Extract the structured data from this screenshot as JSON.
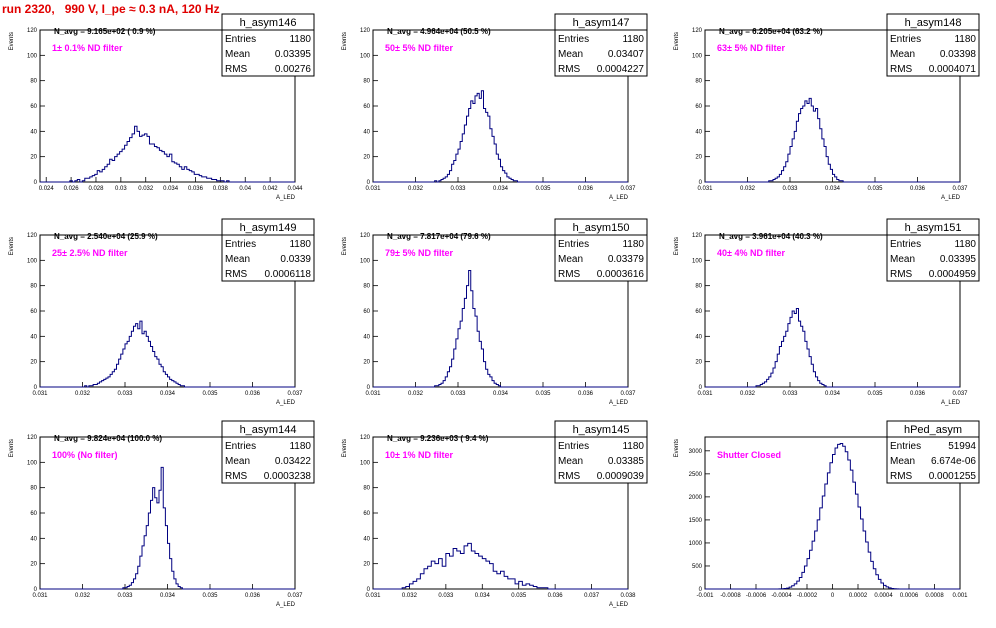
{
  "page_title": "run 2320,   990 V, I_pe ≈ 0.3 nA, 120 Hz",
  "stats_labels": {
    "entries": "Entries",
    "mean": "Mean",
    "rms": "RMS"
  },
  "colors": {
    "histogram": "#000080",
    "annotation": "#ff00ff",
    "title": "#e00000"
  },
  "chart_data": [
    {
      "type": "bar",
      "name": "h_asym146",
      "nav_text": "N_avg = 9.165e+02 ( 0.9 %)",
      "filter_text": "1± 0.1% ND filter",
      "ylabel": "Events",
      "xlabel": "A_LED",
      "xlim": [
        0.0235,
        0.044
      ],
      "ylim": [
        0,
        120
      ],
      "xticks": [
        0.024,
        0.026,
        0.028,
        0.03,
        0.032,
        0.034,
        0.036,
        0.038,
        0.04,
        0.042,
        0.044
      ],
      "yticks": [
        0,
        20,
        40,
        60,
        80,
        100,
        120
      ],
      "bin_start": 0.0235,
      "bin_width": 0.0002,
      "values": [
        0,
        0,
        0,
        0,
        0,
        0,
        0,
        0,
        0,
        0,
        0,
        0,
        1,
        0,
        1,
        2,
        0,
        1,
        3,
        3,
        4,
        5,
        6,
        9,
        8,
        10,
        12,
        14,
        18,
        17,
        20,
        22,
        24,
        26,
        29,
        32,
        35,
        38,
        44,
        40,
        36,
        37,
        38,
        36,
        30,
        30,
        28,
        27,
        25,
        24,
        22,
        20,
        22,
        16,
        15,
        14,
        12,
        10,
        12,
        10,
        9,
        8,
        6,
        6,
        5,
        4,
        4,
        3,
        3,
        2,
        2,
        1,
        1,
        1,
        0,
        1,
        0,
        0,
        0,
        0,
        0,
        0,
        0,
        0,
        0,
        0,
        0,
        0,
        0,
        0,
        0,
        0,
        0,
        0,
        0,
        0,
        0,
        0,
        0,
        0,
        0,
        0,
        0
      ],
      "stats": {
        "entries": "1180",
        "mean": "0.03395",
        "rms": "0.00276"
      }
    },
    {
      "type": "bar",
      "name": "h_asym147",
      "nav_text": "N_avg = 4.964e+04 (50.5 %)",
      "filter_text": "50± 5% ND filter",
      "ylabel": "Events",
      "xlabel": "A_LED",
      "xlim": [
        0.031,
        0.037
      ],
      "ylim": [
        0,
        120
      ],
      "xticks": [
        0.031,
        0.032,
        0.033,
        0.034,
        0.035,
        0.036,
        0.037
      ],
      "yticks": [
        0,
        20,
        40,
        60,
        80,
        100,
        120
      ],
      "bin_start": 0.031,
      "bin_width": 5e-05,
      "values": [
        0,
        0,
        0,
        0,
        0,
        0,
        0,
        0,
        0,
        0,
        0,
        0,
        0,
        0,
        0,
        0,
        0,
        0,
        0,
        0,
        0,
        0,
        0,
        0,
        0,
        0,
        0,
        0,
        0,
        1,
        0,
        1,
        2,
        3,
        4,
        6,
        9,
        14,
        17,
        22,
        26,
        32,
        38,
        45,
        52,
        58,
        64,
        62,
        68,
        70,
        66,
        72,
        58,
        55,
        52,
        42,
        36,
        30,
        22,
        18,
        12,
        9,
        7,
        4,
        3,
        2,
        1,
        1,
        0,
        0,
        0,
        0,
        0,
        0,
        0,
        0,
        0,
        0,
        0,
        0,
        0,
        0,
        0,
        0,
        0,
        0,
        0,
        0,
        0,
        0,
        0,
        0,
        0,
        0,
        0,
        0,
        0,
        0,
        0,
        0,
        0,
        0,
        0,
        0,
        0,
        0,
        0,
        0,
        0,
        0,
        0,
        0,
        0,
        0,
        0,
        0,
        0,
        0,
        0,
        0
      ],
      "stats": {
        "entries": "1180",
        "mean": "0.03407",
        "rms": "0.0004227"
      }
    },
    {
      "type": "bar",
      "name": "h_asym148",
      "nav_text": "N_avg = 6.205e+04 (63.2 %)",
      "filter_text": "63± 5% ND filter",
      "ylabel": "Events",
      "xlabel": "A_LED",
      "xlim": [
        0.031,
        0.037
      ],
      "ylim": [
        0,
        120
      ],
      "xticks": [
        0.031,
        0.032,
        0.033,
        0.034,
        0.035,
        0.036,
        0.037
      ],
      "yticks": [
        0,
        20,
        40,
        60,
        80,
        100,
        120
      ],
      "bin_start": 0.031,
      "bin_width": 5e-05,
      "values": [
        0,
        0,
        0,
        0,
        0,
        0,
        0,
        0,
        0,
        0,
        0,
        0,
        0,
        0,
        0,
        0,
        0,
        0,
        0,
        0,
        0,
        0,
        0,
        0,
        0,
        0,
        0,
        0,
        0,
        0,
        1,
        1,
        2,
        3,
        4,
        6,
        9,
        12,
        16,
        22,
        28,
        34,
        40,
        48,
        54,
        58,
        60,
        64,
        62,
        66,
        60,
        56,
        58,
        50,
        42,
        34,
        28,
        20,
        14,
        10,
        6,
        4,
        2,
        1,
        1,
        0,
        0,
        0,
        0,
        0,
        0,
        0,
        0,
        0,
        0,
        0,
        0,
        0,
        0,
        0,
        0,
        0,
        0,
        0,
        0,
        0,
        0,
        0,
        0,
        0,
        0,
        0,
        0,
        0,
        0,
        0,
        0,
        0,
        0,
        0,
        0,
        0,
        0,
        0,
        0,
        0,
        0,
        0,
        0,
        0,
        0,
        0,
        0,
        0,
        0,
        0,
        0,
        0,
        0,
        0
      ],
      "stats": {
        "entries": "1180",
        "mean": "0.03398",
        "rms": "0.0004071"
      }
    },
    {
      "type": "bar",
      "name": "h_asym149",
      "nav_text": "N_avg = 2.540e+04 (25.9 %)",
      "filter_text": "25± 2.5% ND filter",
      "ylabel": "Events",
      "xlabel": "A_LED",
      "xlim": [
        0.031,
        0.037
      ],
      "ylim": [
        0,
        120
      ],
      "xticks": [
        0.031,
        0.032,
        0.033,
        0.034,
        0.035,
        0.036,
        0.037
      ],
      "yticks": [
        0,
        20,
        40,
        60,
        80,
        100,
        120
      ],
      "bin_start": 0.031,
      "bin_width": 5e-05,
      "values": [
        0,
        0,
        0,
        0,
        0,
        0,
        0,
        0,
        0,
        0,
        0,
        0,
        0,
        0,
        0,
        0,
        0,
        0,
        0,
        0,
        0,
        1,
        0,
        1,
        1,
        2,
        2,
        3,
        4,
        5,
        6,
        7,
        8,
        10,
        12,
        14,
        18,
        22,
        26,
        30,
        34,
        36,
        40,
        44,
        48,
        50,
        46,
        52,
        42,
        44,
        40,
        36,
        32,
        28,
        24,
        22,
        18,
        16,
        12,
        10,
        8,
        6,
        5,
        4,
        3,
        2,
        1,
        1,
        0,
        0,
        0,
        0,
        0,
        0,
        0,
        0,
        0,
        0,
        0,
        0,
        0,
        0,
        0,
        0,
        0,
        0,
        0,
        0,
        0,
        0,
        0,
        0,
        0,
        0,
        0,
        0,
        0,
        0,
        0,
        0,
        0,
        0,
        0,
        0,
        0,
        0,
        0,
        0,
        0,
        0,
        0,
        0,
        0,
        0,
        0,
        0,
        0,
        0,
        0,
        0
      ],
      "stats": {
        "entries": "1180",
        "mean": "0.0339",
        "rms": "0.0006118"
      }
    },
    {
      "type": "bar",
      "name": "h_asym150",
      "nav_text": "N_avg = 7.817e+04 (79.6 %)",
      "filter_text": "79± 5% ND filter",
      "ylabel": "Events",
      "xlabel": "A_LED",
      "xlim": [
        0.031,
        0.037
      ],
      "ylim": [
        0,
        120
      ],
      "xticks": [
        0.031,
        0.032,
        0.033,
        0.034,
        0.035,
        0.036,
        0.037
      ],
      "yticks": [
        0,
        20,
        40,
        60,
        80,
        100,
        120
      ],
      "bin_start": 0.031,
      "bin_width": 5e-05,
      "values": [
        0,
        0,
        0,
        0,
        0,
        0,
        0,
        0,
        0,
        0,
        0,
        0,
        0,
        0,
        0,
        0,
        0,
        0,
        0,
        0,
        0,
        0,
        0,
        0,
        0,
        0,
        0,
        0,
        0,
        1,
        1,
        2,
        3,
        5,
        8,
        12,
        16,
        22,
        30,
        38,
        46,
        52,
        62,
        70,
        80,
        92,
        76,
        62,
        56,
        44,
        36,
        30,
        20,
        14,
        10,
        8,
        5,
        3,
        2,
        1,
        0,
        0,
        0,
        0,
        0,
        0,
        0,
        0,
        0,
        0,
        0,
        0,
        0,
        0,
        0,
        0,
        0,
        0,
        0,
        0,
        0,
        0,
        0,
        0,
        0,
        0,
        0,
        0,
        0,
        0,
        0,
        0,
        0,
        0,
        0,
        0,
        0,
        0,
        0,
        0,
        0,
        0,
        0,
        0,
        0,
        0,
        0,
        0,
        0,
        0,
        0,
        0,
        0,
        0,
        0,
        0,
        0,
        0,
        0,
        0
      ],
      "stats": {
        "entries": "1180",
        "mean": "0.03379",
        "rms": "0.0003616"
      }
    },
    {
      "type": "bar",
      "name": "h_asym151",
      "nav_text": "N_avg = 3.961e+04 (40.3 %)",
      "filter_text": "40± 4% ND filter",
      "ylabel": "Events",
      "xlabel": "A_LED",
      "xlim": [
        0.031,
        0.037
      ],
      "ylim": [
        0,
        120
      ],
      "xticks": [
        0.031,
        0.032,
        0.033,
        0.034,
        0.035,
        0.036,
        0.037
      ],
      "yticks": [
        0,
        20,
        40,
        60,
        80,
        100,
        120
      ],
      "bin_start": 0.031,
      "bin_width": 5e-05,
      "values": [
        0,
        0,
        0,
        0,
        0,
        0,
        0,
        0,
        0,
        0,
        0,
        0,
        0,
        0,
        0,
        0,
        0,
        0,
        0,
        0,
        0,
        0,
        0,
        0,
        1,
        1,
        2,
        3,
        4,
        6,
        8,
        11,
        15,
        20,
        26,
        32,
        36,
        40,
        44,
        50,
        55,
        60,
        58,
        62,
        52,
        48,
        44,
        36,
        30,
        24,
        18,
        12,
        8,
        5,
        3,
        2,
        1,
        0,
        0,
        0,
        0,
        0,
        0,
        0,
        0,
        0,
        0,
        0,
        0,
        0,
        0,
        0,
        0,
        0,
        0,
        0,
        0,
        0,
        0,
        0,
        0,
        0,
        0,
        0,
        0,
        0,
        0,
        0,
        0,
        0,
        0,
        0,
        0,
        0,
        0,
        0,
        0,
        0,
        0,
        0,
        0,
        0,
        0,
        0,
        0,
        0,
        0,
        0,
        0,
        0,
        0,
        0,
        0,
        0,
        0,
        0,
        0,
        0,
        0,
        0
      ],
      "stats": {
        "entries": "1180",
        "mean": "0.03395",
        "rms": "0.0004959"
      }
    },
    {
      "type": "bar",
      "name": "h_asym144",
      "nav_text": "N_avg = 9.824e+04 (100.0 %)",
      "filter_text": "100% (No filter)",
      "ylabel": "Events",
      "xlabel": "A_LED",
      "xlim": [
        0.031,
        0.037
      ],
      "ylim": [
        0,
        120
      ],
      "xticks": [
        0.031,
        0.032,
        0.033,
        0.034,
        0.035,
        0.036,
        0.037
      ],
      "yticks": [
        0,
        20,
        40,
        60,
        80,
        100,
        120
      ],
      "bin_start": 0.031,
      "bin_width": 5e-05,
      "values": [
        0,
        0,
        0,
        0,
        0,
        0,
        0,
        0,
        0,
        0,
        0,
        0,
        0,
        0,
        0,
        0,
        0,
        0,
        0,
        0,
        0,
        0,
        0,
        0,
        0,
        0,
        0,
        0,
        0,
        0,
        0,
        0,
        0,
        0,
        0,
        0,
        0,
        0,
        0,
        1,
        1,
        2,
        3,
        5,
        8,
        12,
        18,
        26,
        34,
        42,
        50,
        60,
        70,
        80,
        72,
        68,
        78,
        96,
        64,
        50,
        36,
        24,
        14,
        8,
        4,
        2,
        1,
        0,
        0,
        0,
        0,
        0,
        0,
        0,
        0,
        0,
        0,
        0,
        0,
        0,
        0,
        0,
        0,
        0,
        0,
        0,
        0,
        0,
        0,
        0,
        0,
        0,
        0,
        0,
        0,
        0,
        0,
        0,
        0,
        0,
        0,
        0,
        0,
        0,
        0,
        0,
        0,
        0,
        0,
        0,
        0,
        0,
        0,
        0,
        0,
        0,
        0,
        0,
        0,
        0
      ],
      "stats": {
        "entries": "1180",
        "mean": "0.03422",
        "rms": "0.0003238"
      }
    },
    {
      "type": "bar",
      "name": "h_asym145",
      "nav_text": "N_avg = 9.236e+03 ( 9.4 %)",
      "filter_text": "10± 1% ND filter",
      "ylabel": "Events",
      "xlabel": "A_LED",
      "xlim": [
        0.031,
        0.038
      ],
      "ylim": [
        0,
        120
      ],
      "xticks": [
        0.031,
        0.032,
        0.033,
        0.034,
        0.035,
        0.036,
        0.037,
        0.038
      ],
      "yticks": [
        0,
        20,
        40,
        60,
        80,
        100,
        120
      ],
      "bin_start": 0.031,
      "bin_width": 0.0001,
      "values": [
        0,
        0,
        0,
        0,
        0,
        0,
        0,
        0,
        1,
        2,
        4,
        6,
        8,
        12,
        16,
        18,
        22,
        20,
        24,
        18,
        28,
        26,
        32,
        30,
        28,
        34,
        36,
        30,
        28,
        26,
        24,
        22,
        20,
        14,
        12,
        14,
        10,
        8,
        8,
        4,
        6,
        3,
        4,
        3,
        2,
        1,
        1,
        1,
        0,
        0,
        0,
        0,
        0,
        0,
        0,
        0,
        0,
        0,
        0,
        0,
        0,
        0,
        0,
        0,
        0,
        0,
        0,
        0,
        0,
        0
      ],
      "stats": {
        "entries": "1180",
        "mean": "0.03385",
        "rms": "0.0009039"
      }
    },
    {
      "type": "bar",
      "name": "hPed_asym",
      "nav_text": "",
      "filter_text": "Shutter Closed",
      "ylabel": "Events",
      "xlabel": "",
      "xlim": [
        -0.001,
        0.001
      ],
      "ylim": [
        0,
        3300
      ],
      "xticks": [
        -0.001,
        -0.0008,
        -0.0006,
        -0.0004,
        -0.0002,
        0,
        0.0002,
        0.0004,
        0.0006,
        0.0008,
        0.001
      ],
      "yticks": [
        0,
        500,
        1000,
        1500,
        2000,
        2500,
        3000
      ],
      "bin_start": -0.001,
      "bin_width": 2e-05,
      "values": [
        0,
        0,
        0,
        0,
        0,
        0,
        0,
        0,
        0,
        0,
        0,
        0,
        0,
        0,
        0,
        0,
        0,
        0,
        0,
        0,
        0,
        0,
        0,
        0,
        0,
        0,
        0,
        0,
        0,
        2,
        5,
        10,
        20,
        40,
        70,
        110,
        170,
        250,
        360,
        500,
        660,
        840,
        1040,
        1260,
        1500,
        1760,
        2020,
        2280,
        2520,
        2740,
        2920,
        3060,
        3140,
        3160,
        3100,
        2980,
        2800,
        2580,
        2320,
        2060,
        1780,
        1520,
        1260,
        1020,
        800,
        600,
        440,
        310,
        210,
        130,
        80,
        45,
        25,
        12,
        6,
        3,
        1,
        0,
        0,
        0,
        0,
        0,
        0,
        0,
        0,
        0,
        0,
        0,
        0,
        0,
        0,
        0,
        0,
        0,
        0,
        0,
        0,
        0,
        0,
        0,
        0,
        0
      ],
      "stats": {
        "entries": "51994",
        "mean": "6.674e-06",
        "rms": "0.0001255"
      }
    }
  ]
}
